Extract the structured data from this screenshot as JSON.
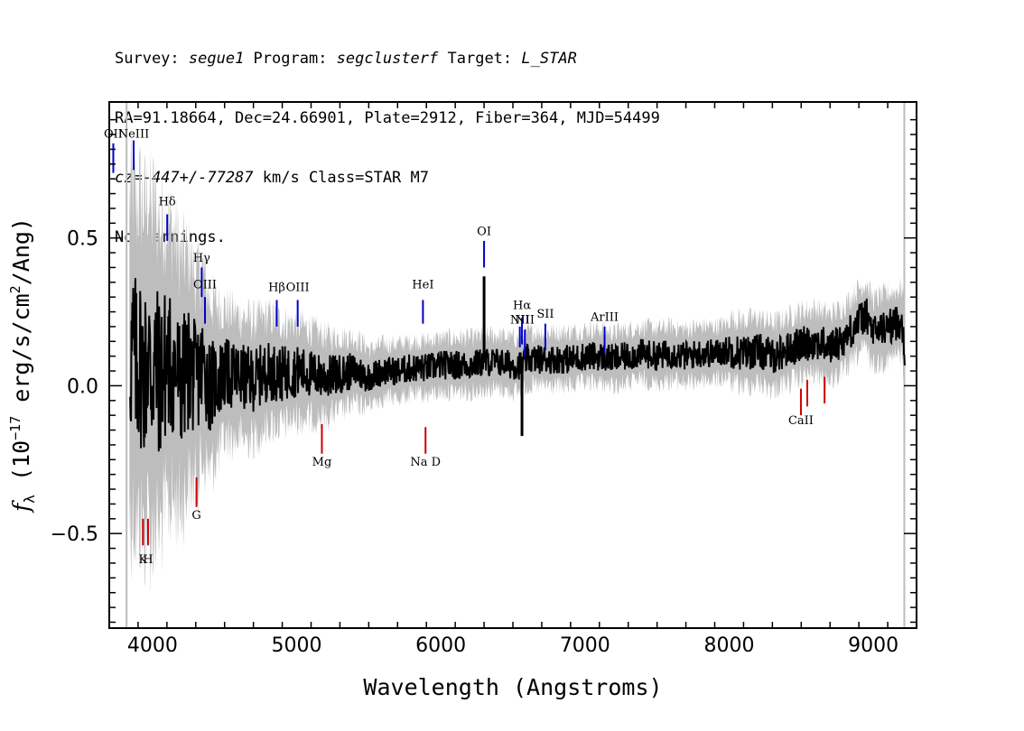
{
  "header": {
    "line1": {
      "prefix": "Survey: ",
      "survey": "segue1",
      "mid": " Program: ",
      "program": "segclusterf",
      "mid2": " Target: ",
      "target": "L_STAR"
    },
    "line2": "RA=91.18664, Dec=24.66901, Plate=2912, Fiber=364, MJD=54499",
    "line3": {
      "cz": "cz=-447+/-77287",
      "rest": " km/s Class=STAR M7"
    },
    "line4": "No warnings."
  },
  "chart_data": {
    "type": "line",
    "xlabel": "Wavelength (Angstroms)",
    "ylabel": "f_λ (10^-17 erg/s/cm^2/Ang)",
    "xlim": [
      3700,
      9300
    ],
    "ylim": [
      -0.82,
      0.96
    ],
    "x_ticks": [
      4000,
      5000,
      6000,
      7000,
      8000,
      9000
    ],
    "y_ticks": [
      -0.5,
      0.0,
      0.5
    ],
    "y_tick_labels": [
      "−0.5",
      "0.0",
      "0.5"
    ],
    "series": [
      {
        "role": "error-envelope",
        "color": "#bdbdbd"
      },
      {
        "role": "flux",
        "color": "#000000",
        "x": [
          3850,
          3870,
          3890,
          3910,
          3930,
          3950,
          3970,
          3990,
          4010,
          4050,
          4100,
          4150,
          4200,
          4250,
          4300,
          4350,
          4400,
          4500,
          4600,
          4700,
          4800,
          4900,
          5000,
          5100,
          5200,
          5300,
          5400,
          5500,
          5600,
          5700,
          5800,
          5900,
          6000,
          6100,
          6200,
          6300,
          6400,
          6500,
          6560,
          6600,
          6700,
          6800,
          6900,
          7000,
          7100,
          7200,
          7300,
          7400,
          7500,
          7600,
          7700,
          7800,
          7900,
          8000,
          8100,
          8200,
          8300,
          8400,
          8500,
          8600,
          8700,
          8800,
          8900,
          8950,
          9000,
          9100,
          9200,
          9220
        ],
        "y": [
          0.1,
          0.12,
          0.05,
          0.1,
          0.06,
          0.05,
          0.12,
          0.02,
          0.08,
          0.03,
          0.08,
          0.06,
          0.01,
          0.06,
          0.02,
          0.07,
          0.0,
          0.04,
          0.03,
          0.02,
          0.05,
          0.04,
          0.05,
          0.04,
          0.03,
          0.04,
          0.05,
          0.03,
          0.05,
          0.05,
          0.06,
          0.06,
          0.07,
          0.07,
          0.07,
          0.08,
          0.08,
          0.07,
          0.07,
          0.09,
          0.09,
          0.09,
          0.09,
          0.1,
          0.1,
          0.09,
          0.1,
          0.11,
          0.1,
          0.11,
          0.1,
          0.11,
          0.11,
          0.12,
          0.11,
          0.12,
          0.1,
          0.12,
          0.14,
          0.15,
          0.13,
          0.16,
          0.22,
          0.24,
          0.18,
          0.2,
          0.22,
          0.11
        ]
      }
    ],
    "spectral_lines": [
      {
        "label": "OII",
        "x": 3728,
        "y_label": 0.84,
        "y0": 0.72,
        "y1": 0.82,
        "color": "#0000cc",
        "side": "top"
      },
      {
        "label": "NeIII",
        "x": 3869,
        "y_label": 0.84,
        "y0": 0.73,
        "y1": 0.83,
        "color": "#0000cc",
        "side": "top"
      },
      {
        "label": "Hδ",
        "x": 4102,
        "y_label": 0.61,
        "y0": 0.49,
        "y1": 0.58,
        "color": "#0000cc",
        "side": "top"
      },
      {
        "label": "Hγ",
        "x": 4341,
        "y_label": 0.42,
        "y0": 0.3,
        "y1": 0.4,
        "color": "#0000cc",
        "side": "top"
      },
      {
        "label": "OIII",
        "x": 4364,
        "y_label": 0.33,
        "y0": 0.21,
        "y1": 0.3,
        "color": "#0000cc",
        "side": "top"
      },
      {
        "label": "Hβ",
        "x": 4862,
        "y_label": 0.32,
        "y0": 0.2,
        "y1": 0.29,
        "color": "#0000cc",
        "side": "top"
      },
      {
        "label": "OIII",
        "x": 5007,
        "y_label": 0.32,
        "y0": 0.2,
        "y1": 0.29,
        "color": "#0000cc",
        "side": "top"
      },
      {
        "label": "HeI",
        "x": 5876,
        "y_label": 0.33,
        "y0": 0.21,
        "y1": 0.29,
        "color": "#0000cc",
        "side": "top"
      },
      {
        "label": "OI",
        "x": 6300,
        "y_label": 0.51,
        "y0": 0.4,
        "y1": 0.49,
        "color": "#0000cc",
        "side": "top"
      },
      {
        "label": "NII",
        "x": 6548,
        "y_label": 0.21,
        "y0": 0.13,
        "y1": 0.2,
        "color": "#0000cc",
        "side": "top"
      },
      {
        "label": "Hα",
        "x": 6563,
        "y_label": 0.26,
        "y0": 0.14,
        "y1": 0.23,
        "color": "#0000cc",
        "side": "top"
      },
      {
        "label": "NII",
        "x": 6583,
        "y_label": 0.21,
        "y0": 0.1,
        "y1": 0.19,
        "color": "#0000cc",
        "side": "top"
      },
      {
        "label": "SII",
        "x": 6725,
        "y_label": 0.23,
        "y0": 0.12,
        "y1": 0.21,
        "color": "#0000cc",
        "side": "top"
      },
      {
        "label": "ArIII",
        "x": 7136,
        "y_label": 0.22,
        "y0": 0.11,
        "y1": 0.2,
        "color": "#0000cc",
        "side": "top"
      },
      {
        "label": "K",
        "x": 3934,
        "y_label": -0.6,
        "y0": -0.54,
        "y1": -0.45,
        "color": "#cc0000",
        "side": "bottom"
      },
      {
        "label": "H",
        "x": 3969,
        "y_label": -0.6,
        "y0": -0.54,
        "y1": -0.45,
        "color": "#cc0000",
        "side": "bottom"
      },
      {
        "label": "G",
        "x": 4305,
        "y_label": -0.45,
        "y0": -0.41,
        "y1": -0.31,
        "color": "#cc0000",
        "side": "bottom"
      },
      {
        "label": "Mg",
        "x": 5175,
        "y_label": -0.27,
        "y0": -0.23,
        "y1": -0.13,
        "color": "#cc0000",
        "side": "bottom"
      },
      {
        "label": "Na D",
        "x": 5894,
        "y_label": -0.27,
        "y0": -0.23,
        "y1": -0.14,
        "color": "#cc0000",
        "side": "bottom"
      },
      {
        "label": "CaII",
        "x": 8498,
        "y_label": -0.13,
        "y0": -0.1,
        "y1": -0.01,
        "color": "#cc0000",
        "side": "bottom"
      },
      {
        "label": "",
        "x": 8542,
        "y_label": null,
        "y0": -0.07,
        "y1": 0.02,
        "color": "#cc0000",
        "side": "bottom"
      },
      {
        "label": "",
        "x": 8662,
        "y_label": null,
        "y0": -0.06,
        "y1": 0.03,
        "color": "#cc0000",
        "side": "bottom"
      }
    ],
    "reference_lines": [
      {
        "x": 3820,
        "color": "#bdbdbd"
      },
      {
        "x": 9215,
        "color": "#bdbdbd"
      }
    ],
    "grid": false,
    "legend": "none"
  }
}
